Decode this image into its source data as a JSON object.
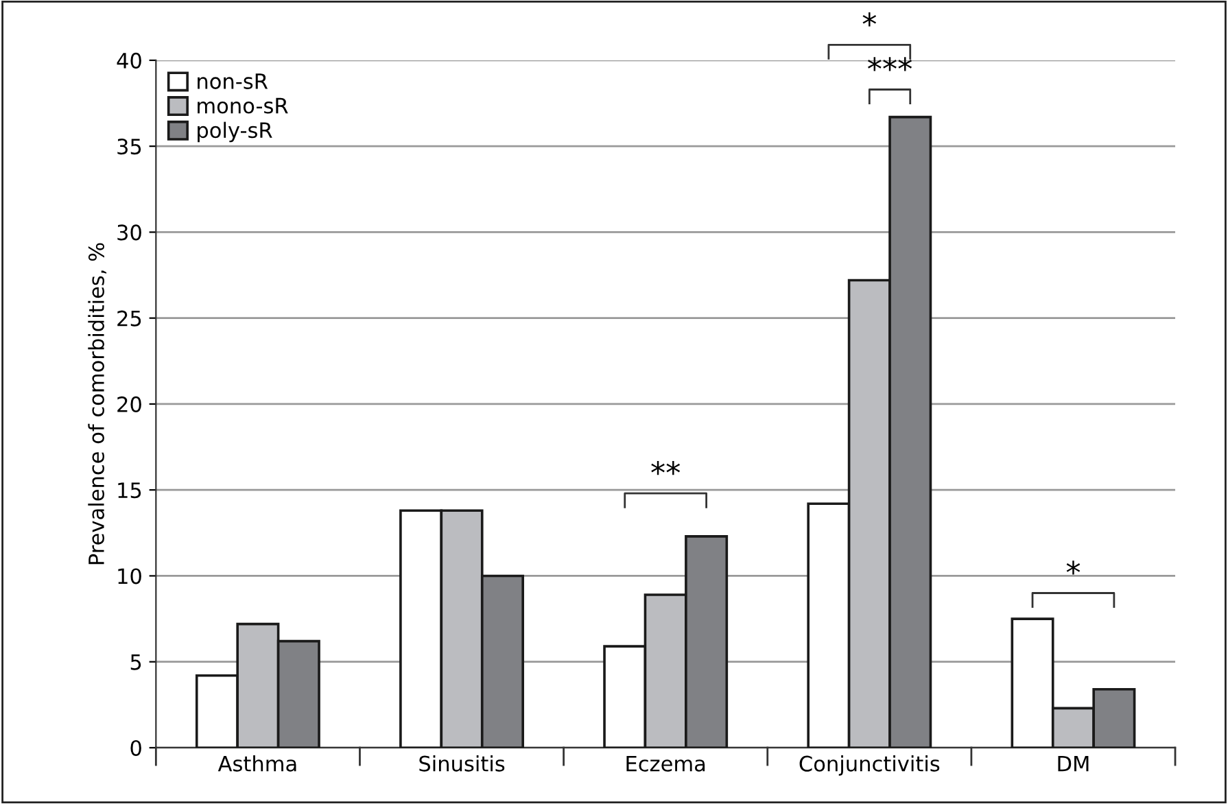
{
  "chart_data": {
    "type": "bar",
    "ylabel": "Prevalence of comorbidities, %",
    "categories": [
      "Asthma",
      "Sinusitis",
      "Eczema",
      "Conjunctivitis",
      "DM"
    ],
    "series": [
      {
        "name": "non-sR",
        "color": "#ffffff",
        "values": [
          4.2,
          13.8,
          5.9,
          14.2,
          7.5
        ]
      },
      {
        "name": "mono-sR",
        "color": "#bbbcc0",
        "values": [
          7.2,
          13.8,
          8.9,
          27.2,
          2.3
        ]
      },
      {
        "name": "poly-sR",
        "color": "#808185",
        "values": [
          6.2,
          10.0,
          12.3,
          36.7,
          3.4
        ]
      }
    ],
    "ylim": [
      0,
      40
    ],
    "yticks": [
      0,
      5,
      10,
      15,
      20,
      25,
      30,
      35,
      40
    ],
    "grid": "y",
    "legend": "top left",
    "annotations": [
      "**",
      "*",
      "***",
      "*"
    ]
  }
}
